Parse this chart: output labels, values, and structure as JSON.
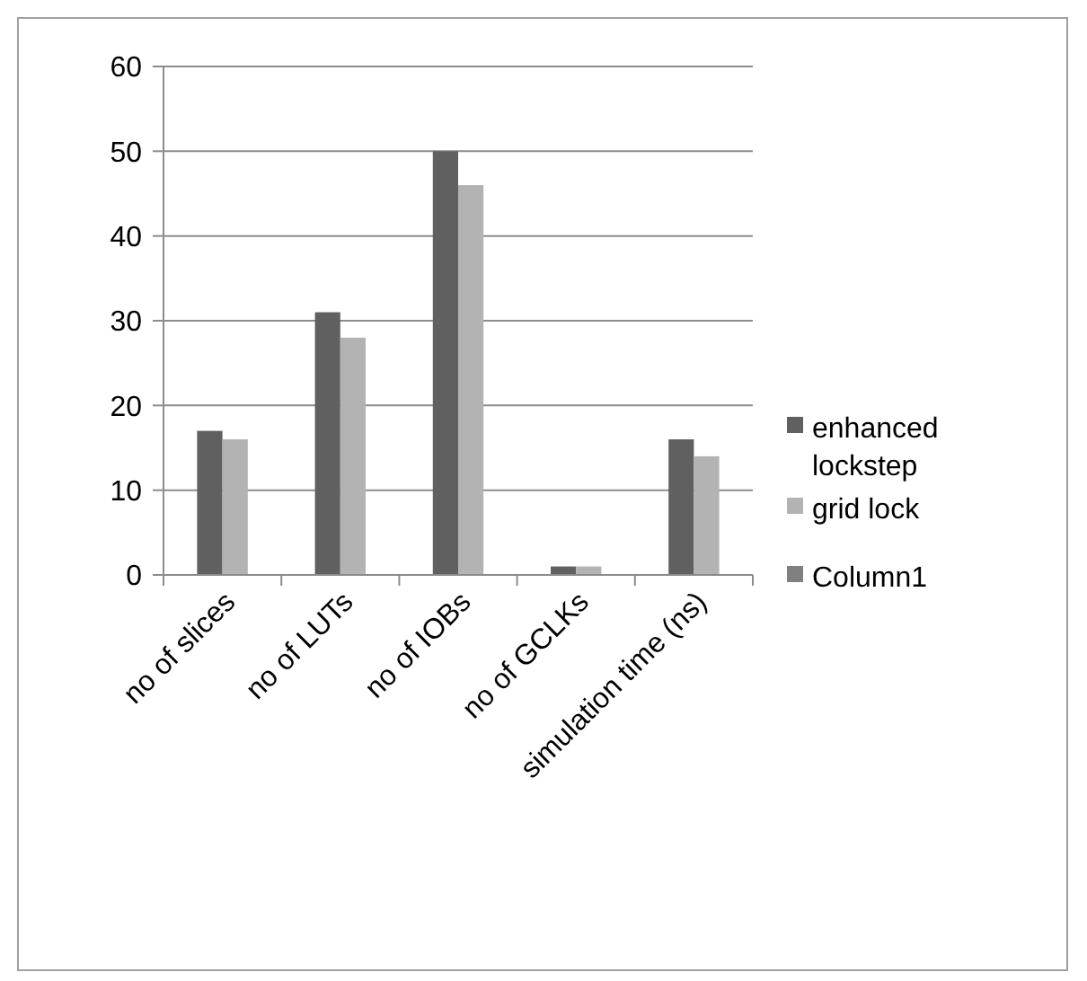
{
  "chart_data": {
    "type": "bar",
    "categories": [
      "no of slices",
      "no of LUTs",
      "no of IOBs",
      "no of GCLKs",
      "simulation time (ns)"
    ],
    "series": [
      {
        "name": "enhanced lockstep",
        "color": "#606060",
        "values": [
          17,
          31,
          50,
          1,
          16
        ]
      },
      {
        "name": "grid lock",
        "color": "#b3b3b3",
        "values": [
          16,
          28,
          46,
          1,
          14
        ]
      },
      {
        "name": "Column1",
        "color": "#808080",
        "values": [
          null,
          null,
          null,
          null,
          null
        ]
      }
    ],
    "ylim": [
      0,
      60
    ],
    "yticks": [
      0,
      10,
      20,
      30,
      40,
      50,
      60
    ],
    "grid": "y",
    "legend": "right"
  }
}
